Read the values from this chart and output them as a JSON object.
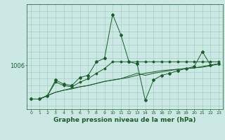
{
  "xlabel": "Graphe pression niveau de la mer (hPa)",
  "background_color": "#cce8e4",
  "grid_color": "#99ccbb",
  "line_color": "#1a5c2a",
  "x_ticks": [
    0,
    1,
    2,
    3,
    4,
    5,
    6,
    7,
    8,
    9,
    10,
    11,
    12,
    13,
    14,
    15,
    16,
    17,
    18,
    19,
    20,
    21,
    22,
    23
  ],
  "y_label_value": 1006,
  "series": [
    [
      1001.0,
      1001.0,
      1001.5,
      1003.8,
      1003.2,
      1003.0,
      1004.2,
      1004.5,
      1006.5,
      1007.0,
      1013.5,
      1010.5,
      1006.5,
      1006.2,
      1000.8,
      1003.8,
      1004.5,
      1004.8,
      1005.2,
      1005.5,
      1005.8,
      1008.0,
      1006.0,
      1006.2
    ],
    [
      1001.0,
      1001.0,
      1001.5,
      1003.5,
      1003.0,
      1002.8,
      1003.5,
      1004.0,
      1004.8,
      1005.5,
      1006.5,
      1006.5,
      1006.5,
      1006.5,
      1006.5,
      1006.5,
      1006.5,
      1006.5,
      1006.5,
      1006.5,
      1006.5,
      1006.5,
      1006.5,
      1006.5
    ],
    [
      1001.0,
      1001.0,
      1001.5,
      1002.0,
      1002.3,
      1002.6,
      1002.8,
      1003.0,
      1003.3,
      1003.6,
      1003.8,
      1004.0,
      1004.4,
      1004.8,
      1004.5,
      1004.8,
      1005.0,
      1005.2,
      1005.4,
      1005.5,
      1005.6,
      1005.8,
      1006.0,
      1006.2
    ],
    [
      1001.0,
      1001.0,
      1001.5,
      1002.0,
      1002.3,
      1002.5,
      1002.8,
      1003.0,
      1003.3,
      1003.6,
      1003.8,
      1004.0,
      1004.2,
      1004.5,
      1004.8,
      1005.0,
      1005.2,
      1005.3,
      1005.4,
      1005.5,
      1005.6,
      1005.7,
      1005.9,
      1006.2
    ]
  ],
  "ylim": [
    999.5,
    1015.0
  ],
  "xlim": [
    -0.5,
    23.5
  ],
  "figsize": [
    3.2,
    2.0
  ],
  "dpi": 100
}
